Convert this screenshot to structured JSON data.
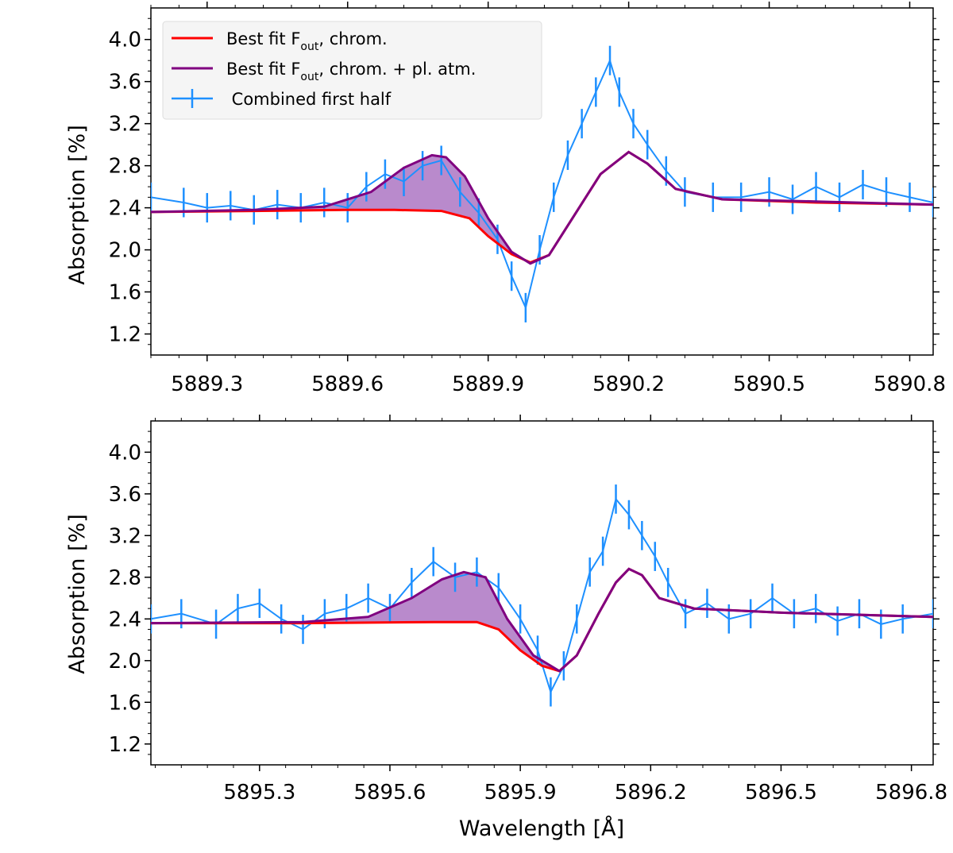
{
  "figure": {
    "xlabel": "Wavelength [Å]"
  },
  "colors": {
    "data": "#1e90ff",
    "chrom": "#ff0000",
    "atm": "#800080",
    "fill": "#9b59b6"
  },
  "legend": {
    "items": [
      {
        "label_main": "Best fit F",
        "label_sub": "out",
        "label_rest": ", chrom.",
        "kind": "line",
        "color": "#ff0000"
      },
      {
        "label_main": "Best fit F",
        "label_sub": "out",
        "label_rest": ", chrom. + pl. atm.",
        "kind": "line",
        "color": "#800080"
      },
      {
        "label_main": " Combined first half",
        "label_sub": "",
        "label_rest": "",
        "kind": "errorbar",
        "color": "#1e90ff"
      }
    ]
  },
  "chart_data": [
    {
      "type": "line",
      "panel": "top",
      "title": "",
      "xlabel": "",
      "ylabel": "Absorption [%]",
      "xlim": [
        5889.18,
        5890.85
      ],
      "ylim": [
        1.0,
        4.3
      ],
      "xticks": [
        5889.3,
        5889.6,
        5889.9,
        5890.2,
        5890.5,
        5890.8
      ],
      "xtick_labels": [
        "5889.3",
        "5889.6",
        "5889.9",
        "5890.2",
        "5890.5",
        "5890.8"
      ],
      "yticks": [
        1.2,
        1.6,
        2.0,
        2.4,
        2.8,
        3.2,
        3.6,
        4.0
      ],
      "ytick_labels": [
        "1.2",
        "1.6",
        "2.0",
        "2.4",
        "2.8",
        "3.2",
        "3.6",
        "4.0"
      ],
      "baseline": 2.36,
      "series": [
        {
          "name": "Best fit F_out, chrom.",
          "kind": "model",
          "x": [
            5889.18,
            5889.4,
            5889.6,
            5889.7,
            5889.8,
            5889.86,
            5889.9,
            5889.95,
            5889.99,
            5890.03,
            5890.08,
            5890.14,
            5890.2,
            5890.24,
            5890.3,
            5890.4,
            5890.6,
            5890.85
          ],
          "values": [
            2.36,
            2.37,
            2.38,
            2.38,
            2.37,
            2.3,
            2.13,
            1.96,
            1.88,
            1.95,
            2.3,
            2.72,
            2.93,
            2.82,
            2.58,
            2.48,
            2.45,
            2.43
          ]
        },
        {
          "name": "Best fit F_out, chrom. + pl. atm.",
          "kind": "model",
          "x": [
            5889.18,
            5889.4,
            5889.55,
            5889.65,
            5889.72,
            5889.78,
            5889.81,
            5889.85,
            5889.9,
            5889.95,
            5889.99,
            5890.03,
            5890.08,
            5890.14,
            5890.2,
            5890.24,
            5890.3,
            5890.4,
            5890.6,
            5890.85
          ],
          "values": [
            2.36,
            2.38,
            2.41,
            2.55,
            2.78,
            2.9,
            2.88,
            2.7,
            2.3,
            1.98,
            1.87,
            1.95,
            2.3,
            2.72,
            2.93,
            2.82,
            2.58,
            2.48,
            2.46,
            2.43
          ]
        },
        {
          "name": "Combined first half",
          "kind": "errorbar",
          "err": 0.14,
          "x": [
            5889.18,
            5889.25,
            5889.3,
            5889.35,
            5889.4,
            5889.45,
            5889.5,
            5889.55,
            5889.6,
            5889.64,
            5889.68,
            5889.72,
            5889.76,
            5889.8,
            5889.84,
            5889.88,
            5889.92,
            5889.95,
            5889.98,
            5890.01,
            5890.04,
            5890.07,
            5890.1,
            5890.13,
            5890.16,
            5890.18,
            5890.21,
            5890.24,
            5890.28,
            5890.32,
            5890.38,
            5890.44,
            5890.5,
            5890.55,
            5890.6,
            5890.65,
            5890.7,
            5890.75,
            5890.8,
            5890.85
          ],
          "values": [
            2.5,
            2.45,
            2.4,
            2.42,
            2.38,
            2.43,
            2.4,
            2.45,
            2.4,
            2.6,
            2.72,
            2.65,
            2.8,
            2.85,
            2.55,
            2.35,
            2.1,
            1.75,
            1.45,
            2.0,
            2.5,
            2.9,
            3.2,
            3.5,
            3.8,
            3.5,
            3.2,
            3.0,
            2.75,
            2.55,
            2.5,
            2.5,
            2.55,
            2.48,
            2.6,
            2.5,
            2.62,
            2.55,
            2.5,
            2.45
          ]
        }
      ]
    },
    {
      "type": "line",
      "panel": "bottom",
      "title": "",
      "xlabel": "Wavelength [Å]",
      "ylabel": "Absorption [%]",
      "xlim": [
        5895.05,
        5896.85
      ],
      "ylim": [
        1.0,
        4.3
      ],
      "xticks": [
        5895.3,
        5895.6,
        5895.9,
        5896.2,
        5896.5,
        5896.8
      ],
      "xtick_labels": [
        "5895.3",
        "5895.6",
        "5895.9",
        "5896.2",
        "5896.5",
        "5896.8"
      ],
      "yticks": [
        1.2,
        1.6,
        2.0,
        2.4,
        2.8,
        3.2,
        3.6,
        4.0
      ],
      "ytick_labels": [
        "1.2",
        "1.6",
        "2.0",
        "2.4",
        "2.8",
        "3.2",
        "3.6",
        "4.0"
      ],
      "baseline": 2.36,
      "series": [
        {
          "name": "Best fit F_out, chrom.",
          "kind": "model",
          "x": [
            5895.05,
            5895.4,
            5895.7,
            5895.8,
            5895.85,
            5895.9,
            5895.95,
            5895.99,
            5896.03,
            5896.08,
            5896.12,
            5896.15,
            5896.18,
            5896.22,
            5896.3,
            5896.5,
            5896.85
          ],
          "values": [
            2.36,
            2.36,
            2.37,
            2.37,
            2.3,
            2.1,
            1.95,
            1.9,
            2.05,
            2.45,
            2.75,
            2.88,
            2.82,
            2.6,
            2.5,
            2.46,
            2.42
          ]
        },
        {
          "name": "Best fit F_out, chrom. + pl. atm.",
          "kind": "model",
          "x": [
            5895.05,
            5895.4,
            5895.55,
            5895.65,
            5895.72,
            5895.77,
            5895.82,
            5895.87,
            5895.93,
            5895.99,
            5896.03,
            5896.08,
            5896.12,
            5896.15,
            5896.18,
            5896.22,
            5896.3,
            5896.5,
            5896.85
          ],
          "values": [
            2.36,
            2.37,
            2.42,
            2.6,
            2.78,
            2.85,
            2.8,
            2.4,
            2.05,
            1.9,
            2.05,
            2.45,
            2.75,
            2.88,
            2.82,
            2.6,
            2.5,
            2.46,
            2.42
          ]
        },
        {
          "name": "Combined first half",
          "kind": "errorbar",
          "err": 0.14,
          "x": [
            5895.05,
            5895.12,
            5895.2,
            5895.25,
            5895.3,
            5895.35,
            5895.4,
            5895.45,
            5895.5,
            5895.55,
            5895.6,
            5895.65,
            5895.7,
            5895.75,
            5895.8,
            5895.85,
            5895.9,
            5895.94,
            5895.97,
            5896.0,
            5896.03,
            5896.06,
            5896.09,
            5896.12,
            5896.15,
            5896.18,
            5896.21,
            5896.24,
            5896.28,
            5896.33,
            5896.38,
            5896.43,
            5896.48,
            5896.53,
            5896.58,
            5896.63,
            5896.68,
            5896.73,
            5896.78,
            5896.85
          ],
          "values": [
            2.4,
            2.45,
            2.35,
            2.5,
            2.55,
            2.4,
            2.3,
            2.45,
            2.5,
            2.6,
            2.5,
            2.75,
            2.95,
            2.8,
            2.85,
            2.7,
            2.4,
            2.1,
            1.7,
            1.95,
            2.4,
            2.85,
            3.05,
            3.55,
            3.4,
            3.2,
            3.0,
            2.75,
            2.45,
            2.55,
            2.4,
            2.45,
            2.6,
            2.45,
            2.5,
            2.38,
            2.45,
            2.35,
            2.4,
            2.45
          ]
        }
      ]
    }
  ]
}
